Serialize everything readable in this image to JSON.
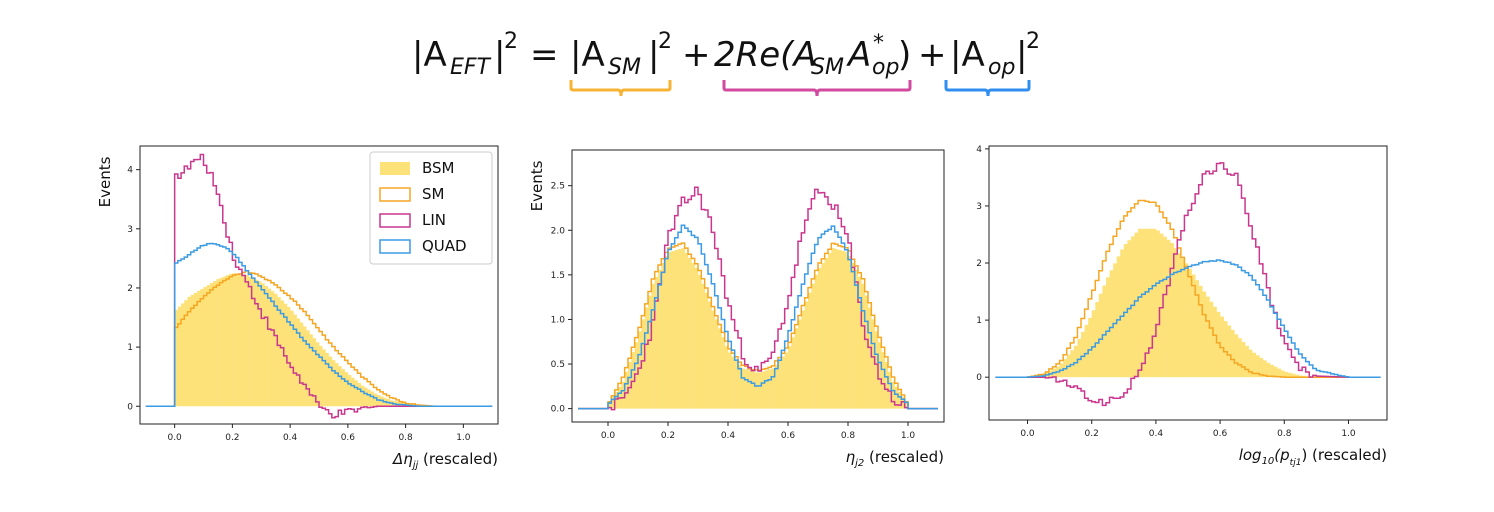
{
  "formula": {
    "lhs": "|A",
    "lhs_sub": "EFT",
    "sq": "2",
    "eq": "=",
    "t1": "|A",
    "t1_sub": "SM",
    "plus1": "+",
    "t2a": "2Re(A",
    "t2_sub1": "SM",
    "t2b": "A",
    "t2_sup": "*",
    "t2_sub2": "op",
    "t2c": ")",
    "plus2": "+",
    "t3": "|A",
    "t3_sub": "op",
    "brace_colors": [
      "#f7b334",
      "#d14a9e",
      "#2f8ef0"
    ]
  },
  "colors": {
    "bsm": "#fde27a",
    "sm": "#f5a623",
    "lin": "#c9378f",
    "quad": "#3b9be3"
  },
  "chart_data": [
    {
      "type": "histogram",
      "ylabel": "Events",
      "xlabel_sym": "Δη",
      "xlabel_sub": "jj",
      "xlabel_rest": " (rescaled)",
      "xlim": [
        -0.12,
        1.12
      ],
      "ylim": [
        -0.3,
        4.4
      ],
      "xticks": [
        "0.0",
        "0.2",
        "0.4",
        "0.6",
        "0.8",
        "1.0"
      ],
      "xtick_values": [
        0.0,
        0.2,
        0.4,
        0.6,
        0.8,
        1.0
      ],
      "yticks": [
        "0",
        "1",
        "2",
        "3",
        "4"
      ],
      "ytick_values": [
        0,
        1,
        2,
        3,
        4
      ],
      "legend": {
        "position": "top-right",
        "entries": [
          "BSM",
          "SM",
          "LIN",
          "QUAD"
        ]
      },
      "series": [
        {
          "name": "BSM",
          "x": [
            0.0,
            0.05,
            0.1,
            0.15,
            0.2,
            0.25,
            0.3,
            0.35,
            0.4,
            0.45,
            0.5,
            0.55,
            0.6,
            0.65,
            0.7,
            0.75,
            0.8,
            0.85,
            0.9,
            1.0
          ],
          "y": [
            1.6,
            1.85,
            2.0,
            2.15,
            2.25,
            2.22,
            2.1,
            1.9,
            1.65,
            1.35,
            1.05,
            0.78,
            0.55,
            0.35,
            0.2,
            0.1,
            0.05,
            0.02,
            0.0,
            0.0
          ]
        },
        {
          "name": "SM",
          "x": [
            0.0,
            0.05,
            0.1,
            0.15,
            0.2,
            0.25,
            0.3,
            0.35,
            0.4,
            0.45,
            0.5,
            0.55,
            0.6,
            0.65,
            0.7,
            0.75,
            0.8,
            0.85,
            0.9,
            1.0
          ],
          "y": [
            1.3,
            1.6,
            1.85,
            2.05,
            2.2,
            2.28,
            2.2,
            2.05,
            1.85,
            1.6,
            1.3,
            1.0,
            0.75,
            0.5,
            0.3,
            0.15,
            0.05,
            0.02,
            0.0,
            0.0
          ]
        },
        {
          "name": "LIN",
          "x": [
            0.0,
            0.03,
            0.06,
            0.09,
            0.12,
            0.15,
            0.18,
            0.21,
            0.25,
            0.3,
            0.35,
            0.4,
            0.45,
            0.5,
            0.55,
            0.6,
            0.65,
            0.7,
            0.75,
            0.8,
            0.85,
            0.9,
            1.0
          ],
          "y": [
            3.9,
            3.95,
            4.1,
            4.2,
            4.0,
            3.6,
            3.0,
            2.45,
            2.1,
            1.6,
            1.15,
            0.7,
            0.35,
            0.0,
            -0.15,
            -0.1,
            -0.05,
            0.0,
            0.0,
            0.0,
            0.0,
            0.0,
            0.0
          ]
        },
        {
          "name": "QUAD",
          "x": [
            0.0,
            0.03,
            0.06,
            0.09,
            0.12,
            0.15,
            0.18,
            0.21,
            0.25,
            0.3,
            0.35,
            0.4,
            0.45,
            0.5,
            0.55,
            0.6,
            0.65,
            0.7,
            0.75,
            0.8,
            0.85,
            0.9,
            1.0
          ],
          "y": [
            2.4,
            2.5,
            2.6,
            2.7,
            2.75,
            2.73,
            2.68,
            2.55,
            2.3,
            2.0,
            1.7,
            1.4,
            1.1,
            0.85,
            0.6,
            0.4,
            0.25,
            0.12,
            0.05,
            0.02,
            0.0,
            0.0,
            0.0
          ]
        }
      ]
    },
    {
      "type": "histogram",
      "ylabel": "Events",
      "xlabel_sym": "η",
      "xlabel_sub": "j2",
      "xlabel_rest": " (rescaled)",
      "xlim": [
        -0.12,
        1.12
      ],
      "ylim": [
        -0.15,
        2.9
      ],
      "xticks": [
        "0.0",
        "0.2",
        "0.4",
        "0.6",
        "0.8",
        "1.0"
      ],
      "xtick_values": [
        0.0,
        0.2,
        0.4,
        0.6,
        0.8,
        1.0
      ],
      "yticks": [
        "0.0",
        "0.5",
        "1.0",
        "1.5",
        "2.0",
        "2.5"
      ],
      "ytick_values": [
        0.0,
        0.5,
        1.0,
        1.5,
        2.0,
        2.5
      ],
      "series": [
        {
          "name": "BSM",
          "x": [
            0.0,
            0.05,
            0.1,
            0.15,
            0.2,
            0.25,
            0.3,
            0.35,
            0.4,
            0.45,
            0.5,
            0.55,
            0.6,
            0.65,
            0.7,
            0.75,
            0.8,
            0.85,
            0.9,
            0.95,
            1.0
          ],
          "y": [
            0.05,
            0.3,
            0.8,
            1.4,
            1.75,
            1.8,
            1.55,
            1.1,
            0.65,
            0.45,
            0.4,
            0.45,
            0.65,
            1.1,
            1.55,
            1.8,
            1.75,
            1.4,
            0.8,
            0.3,
            0.05
          ]
        },
        {
          "name": "SM",
          "x": [
            0.0,
            0.05,
            0.1,
            0.15,
            0.2,
            0.25,
            0.3,
            0.35,
            0.4,
            0.45,
            0.5,
            0.55,
            0.6,
            0.65,
            0.7,
            0.75,
            0.8,
            0.85,
            0.9,
            0.95,
            1.0
          ],
          "y": [
            0.05,
            0.35,
            0.85,
            1.45,
            1.8,
            1.85,
            1.6,
            1.15,
            0.7,
            0.48,
            0.42,
            0.48,
            0.7,
            1.15,
            1.6,
            1.85,
            1.8,
            1.45,
            0.85,
            0.35,
            0.05
          ]
        },
        {
          "name": "LIN",
          "x": [
            0.0,
            0.05,
            0.1,
            0.15,
            0.2,
            0.25,
            0.3,
            0.35,
            0.4,
            0.45,
            0.5,
            0.55,
            0.6,
            0.65,
            0.7,
            0.75,
            0.8,
            0.85,
            0.9,
            0.95,
            1.0
          ],
          "y": [
            0.0,
            0.1,
            0.4,
            0.95,
            1.9,
            2.3,
            2.45,
            2.0,
            1.2,
            0.6,
            0.4,
            0.6,
            1.2,
            2.0,
            2.45,
            2.3,
            1.9,
            0.95,
            0.4,
            0.1,
            0.0
          ]
        },
        {
          "name": "QUAD",
          "x": [
            0.0,
            0.05,
            0.1,
            0.15,
            0.2,
            0.25,
            0.3,
            0.35,
            0.4,
            0.45,
            0.5,
            0.55,
            0.6,
            0.65,
            0.7,
            0.75,
            0.8,
            0.85,
            0.9,
            0.95,
            1.0
          ],
          "y": [
            0.05,
            0.2,
            0.55,
            1.1,
            1.75,
            2.05,
            1.9,
            1.4,
            0.8,
            0.35,
            0.25,
            0.35,
            0.8,
            1.4,
            1.9,
            2.05,
            1.75,
            1.1,
            0.55,
            0.2,
            0.05
          ]
        }
      ]
    },
    {
      "type": "histogram",
      "ylabel": "Events",
      "xlabel_sym": "log",
      "xlabel_sub": "10",
      "xlabel_rest2": "(p",
      "xlabel_sub2": "tj1",
      "xlabel_rest": ") (rescaled)",
      "xlim": [
        -0.12,
        1.12
      ],
      "ylim": [
        -0.75,
        4.05
      ],
      "xticks": [
        "0.0",
        "0.2",
        "0.4",
        "0.6",
        "0.8",
        "1.0"
      ],
      "xtick_values": [
        0.0,
        0.2,
        0.4,
        0.6,
        0.8,
        1.0
      ],
      "yticks": [
        "0",
        "1",
        "2",
        "3",
        "4"
      ],
      "ytick_values": [
        0,
        1,
        2,
        3,
        4
      ],
      "series": [
        {
          "name": "BSM",
          "x": [
            0.0,
            0.05,
            0.1,
            0.15,
            0.2,
            0.25,
            0.3,
            0.35,
            0.4,
            0.45,
            0.5,
            0.55,
            0.6,
            0.65,
            0.7,
            0.75,
            0.8,
            0.85,
            0.9,
            1.0
          ],
          "y": [
            0.0,
            0.05,
            0.2,
            0.55,
            1.1,
            1.75,
            2.3,
            2.6,
            2.6,
            2.35,
            1.95,
            1.5,
            1.1,
            0.75,
            0.45,
            0.25,
            0.1,
            0.03,
            0.0,
            0.0
          ]
        },
        {
          "name": "SM",
          "x": [
            0.0,
            0.05,
            0.1,
            0.15,
            0.2,
            0.25,
            0.3,
            0.35,
            0.4,
            0.45,
            0.5,
            0.55,
            0.6,
            0.65,
            0.7,
            0.75,
            0.8,
            0.85,
            0.9,
            1.0
          ],
          "y": [
            0.0,
            0.05,
            0.25,
            0.7,
            1.45,
            2.2,
            2.8,
            3.1,
            3.05,
            2.6,
            1.85,
            1.1,
            0.55,
            0.25,
            0.08,
            0.02,
            0.0,
            0.0,
            0.0,
            0.0
          ]
        },
        {
          "name": "LIN",
          "x": [
            0.0,
            0.05,
            0.1,
            0.15,
            0.2,
            0.25,
            0.3,
            0.35,
            0.4,
            0.45,
            0.5,
            0.55,
            0.6,
            0.65,
            0.7,
            0.75,
            0.8,
            0.85,
            0.9,
            1.0
          ],
          "y": [
            0.0,
            0.0,
            -0.05,
            -0.2,
            -0.4,
            -0.45,
            -0.3,
            0.1,
            0.8,
            1.9,
            2.9,
            3.5,
            3.75,
            3.5,
            2.6,
            1.5,
            0.6,
            0.15,
            0.02,
            0.0
          ]
        },
        {
          "name": "QUAD",
          "x": [
            0.0,
            0.05,
            0.1,
            0.15,
            0.2,
            0.25,
            0.3,
            0.35,
            0.4,
            0.45,
            0.5,
            0.55,
            0.6,
            0.65,
            0.7,
            0.75,
            0.8,
            0.85,
            0.9,
            1.0
          ],
          "y": [
            0.0,
            0.02,
            0.1,
            0.25,
            0.5,
            0.8,
            1.1,
            1.4,
            1.62,
            1.8,
            1.93,
            2.02,
            2.05,
            1.97,
            1.75,
            1.35,
            0.85,
            0.4,
            0.12,
            0.0
          ]
        }
      ]
    }
  ]
}
